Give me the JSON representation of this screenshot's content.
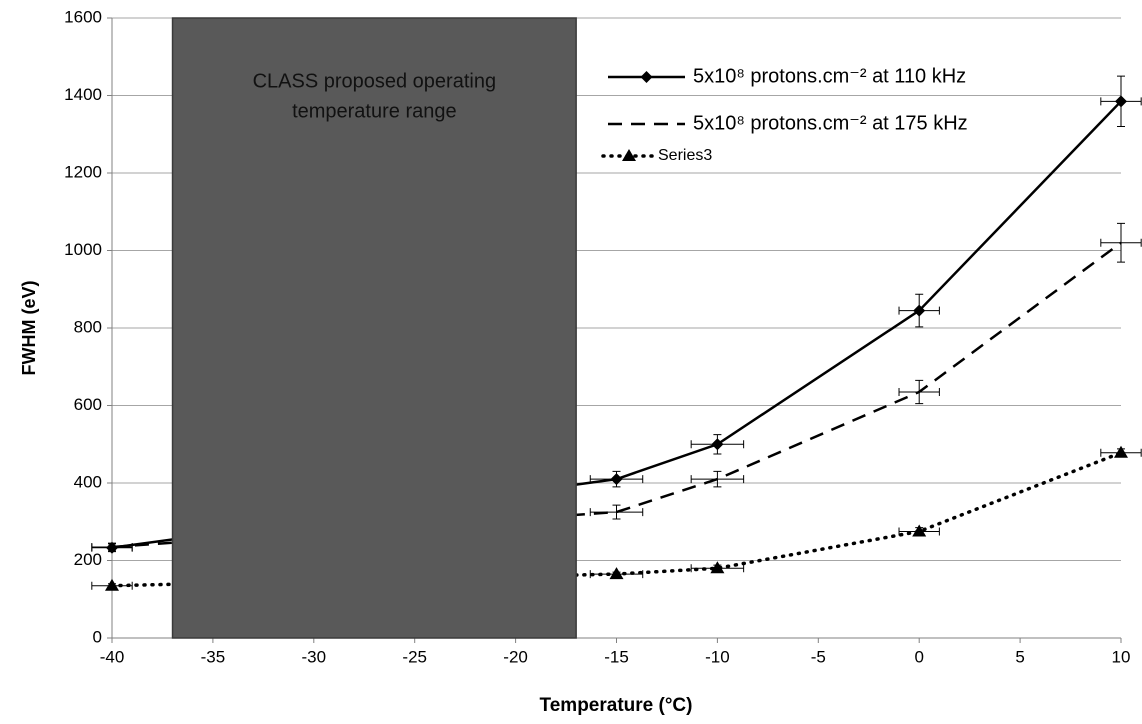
{
  "chart_data": {
    "type": "line",
    "xlabel": "Temperature (°C)",
    "ylabel": "FWHM (eV)",
    "xlim": [
      -40,
      10
    ],
    "xticks": [
      -40,
      -35,
      -30,
      -25,
      -20,
      -15,
      -10,
      -5,
      0,
      5,
      10
    ],
    "ylim": [
      0,
      1600
    ],
    "yticks": [
      0,
      200,
      400,
      600,
      800,
      1000,
      1200,
      1400,
      1600
    ],
    "grid": true,
    "legend": "upper right",
    "region": {
      "x": [
        -37,
        -17
      ],
      "color": "#595959",
      "label_lines": [
        "CLASS proposed operating",
        "temperature range"
      ]
    },
    "series": [
      {
        "name": "5x10⁸ protons.cm⁻² at 110 kHz",
        "color": "#000000",
        "dash": "solid",
        "marker": "diamond",
        "x": [
          -40,
          -15,
          -10,
          0,
          10
        ],
        "values": [
          233,
          410,
          500,
          845,
          1385
        ],
        "errors": [
          10,
          20,
          25,
          42,
          65
        ],
        "xerrors": [
          1,
          1.3,
          1.3,
          1,
          1
        ]
      },
      {
        "name": "5x10⁸ protons.cm⁻² at 175 kHz",
        "color": "#000000",
        "dash": "dashed",
        "marker": "none",
        "x": [
          -40,
          -15,
          -10,
          0,
          10
        ],
        "values": [
          235,
          325,
          410,
          635,
          1020
        ],
        "errors": [
          10,
          18,
          20,
          30,
          50
        ],
        "xerrors": [
          1,
          1.3,
          1.3,
          1,
          1
        ]
      },
      {
        "name": "Series3",
        "color": "#000000",
        "dash": "dotted",
        "marker": "triangle",
        "x": [
          -40,
          -15,
          -10,
          0,
          10
        ],
        "values": [
          135,
          165,
          180,
          275,
          478
        ],
        "errors": [
          5,
          5,
          8,
          10,
          10
        ],
        "xerrors": [
          1,
          1.3,
          1.3,
          1,
          1
        ]
      }
    ]
  }
}
